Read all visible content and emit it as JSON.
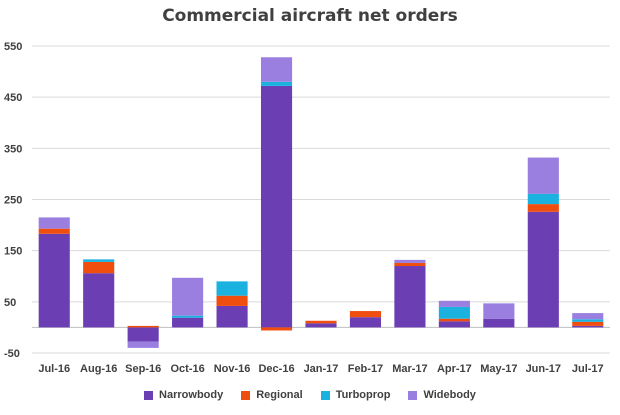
{
  "chart_data": {
    "type": "bar",
    "stacked": true,
    "title": "Commercial aircraft net orders",
    "categories": [
      "Jul-16",
      "Aug-16",
      "Sep-16",
      "Oct-16",
      "Nov-16",
      "Dec-16",
      "Jan-17",
      "Feb-17",
      "Mar-17",
      "Apr-17",
      "May-17",
      "Jun-17",
      "Jul-17"
    ],
    "series": [
      {
        "name": "Narrowbody",
        "color": "#6b3fb3",
        "values": [
          183,
          106,
          -28,
          19,
          42,
          472,
          8,
          20,
          120,
          12,
          17,
          226,
          3
        ]
      },
      {
        "name": "Regional",
        "color": "#f04e0f",
        "values": [
          10,
          22,
          3,
          0,
          20,
          -6,
          5,
          12,
          6,
          5,
          0,
          15,
          8
        ]
      },
      {
        "name": "Turboprop",
        "color": "#1cb2e0",
        "values": [
          0,
          5,
          0,
          4,
          28,
          8,
          0,
          0,
          0,
          23,
          0,
          20,
          5
        ]
      },
      {
        "name": "Widebody",
        "color": "#9a7fe0",
        "values": [
          22,
          0,
          -12,
          74,
          0,
          48,
          0,
          0,
          6,
          12,
          30,
          71,
          12
        ]
      }
    ],
    "ylim": [
      -50,
      550
    ],
    "yticks": [
      -50,
      50,
      150,
      250,
      350,
      450,
      550
    ],
    "grid": true,
    "legend_position": "bottom",
    "xlabel": "",
    "ylabel": ""
  }
}
